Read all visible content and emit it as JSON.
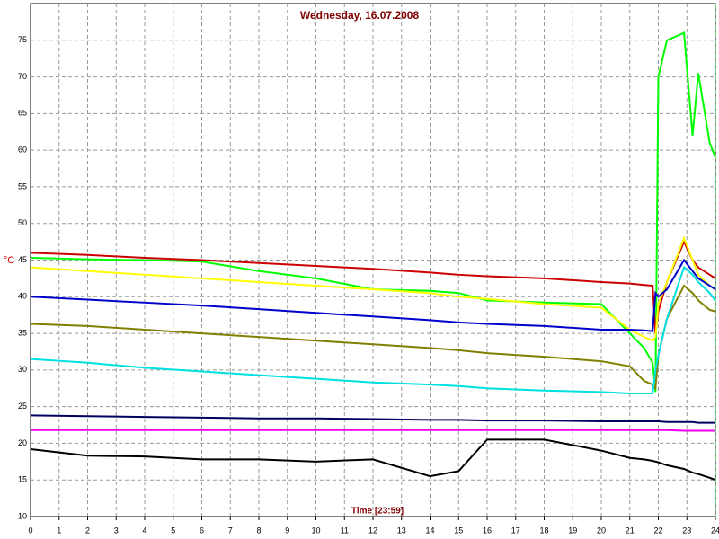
{
  "chart_data": {
    "type": "line",
    "title": "Wednesday, 16.07.2008",
    "y_label": "°C",
    "x_label": "Time [23:59]",
    "xlim": [
      0,
      24
    ],
    "xticks": [
      0,
      1,
      2,
      3,
      4,
      5,
      6,
      7,
      8,
      9,
      10,
      11,
      12,
      13,
      14,
      15,
      16,
      17,
      18,
      19,
      20,
      21,
      22,
      23,
      24
    ],
    "ylim": [
      10,
      80
    ],
    "yticks": [
      10,
      15,
      20,
      25,
      30,
      35,
      40,
      45,
      50,
      55,
      60,
      65,
      70,
      75
    ],
    "grid": true,
    "x": [
      0,
      2,
      4,
      6,
      8,
      10,
      12,
      14,
      15,
      16,
      18,
      20,
      21,
      21.5,
      21.8,
      21.9,
      22,
      22.3,
      22.9,
      23.2,
      23.4,
      23.8,
      24
    ],
    "series": [
      {
        "color": "#00ff00",
        "values": [
          45.3,
          45.1,
          45,
          44.8,
          43.5,
          42.5,
          41,
          40.8,
          40.5,
          39.5,
          39.2,
          39,
          35,
          33,
          31,
          27,
          70,
          75,
          76,
          62,
          70.5,
          61,
          59
        ]
      },
      {
        "color": "#cc0000",
        "values": [
          46,
          45.7,
          45.3,
          45,
          44.6,
          44.2,
          43.8,
          43.3,
          43,
          42.8,
          42.5,
          42,
          41.8,
          41.6,
          41.5,
          35,
          38,
          42,
          47.5,
          45,
          44,
          43,
          42.5
        ]
      },
      {
        "color": "#ffff00",
        "values": [
          44,
          43.5,
          43,
          42.5,
          42,
          41.5,
          41,
          40.5,
          40,
          39.7,
          39,
          38.5,
          35.5,
          34.5,
          34,
          34.5,
          39,
          42,
          48,
          45,
          43,
          41.5,
          41
        ]
      },
      {
        "color": "#0000cc",
        "values": [
          40,
          39.6,
          39.2,
          38.8,
          38.3,
          37.8,
          37.3,
          36.8,
          36.5,
          36.3,
          36,
          35.5,
          35.5,
          35.4,
          35.3,
          40.5,
          40,
          41,
          45,
          43.5,
          42.5,
          41.5,
          41
        ]
      },
      {
        "color": "#808000",
        "values": [
          36.3,
          36,
          35.5,
          35,
          34.5,
          34,
          33.5,
          33,
          32.7,
          32.3,
          31.8,
          31.2,
          30.5,
          28.5,
          28,
          27.5,
          32,
          37,
          41.5,
          40.5,
          39.5,
          38.2,
          38
        ]
      },
      {
        "color": "#00e0e0",
        "values": [
          31.5,
          31,
          30.3,
          29.8,
          29.3,
          28.8,
          28.3,
          28,
          27.8,
          27.5,
          27.2,
          27,
          26.8,
          26.8,
          26.8,
          30,
          32,
          37,
          44,
          43,
          42,
          40.5,
          39.5
        ]
      },
      {
        "color": "#000060",
        "values": [
          23.8,
          23.7,
          23.6,
          23.5,
          23.4,
          23.4,
          23.3,
          23.2,
          23.2,
          23.1,
          23.1,
          23,
          23,
          23,
          23,
          23,
          23,
          22.9,
          22.9,
          22.9,
          22.8,
          22.8,
          22.8
        ]
      },
      {
        "color": "#ee00ee",
        "values": [
          21.8,
          21.8,
          21.8,
          21.8,
          21.8,
          21.8,
          21.8,
          21.8,
          21.8,
          21.8,
          21.8,
          21.8,
          21.8,
          21.8,
          21.8,
          21.8,
          21.8,
          21.8,
          21.7,
          21.7,
          21.7,
          21.7,
          21.7
        ]
      },
      {
        "color": "#000000",
        "values": [
          19.2,
          18.3,
          18.2,
          17.8,
          17.8,
          17.5,
          17.8,
          15.5,
          16.2,
          20.5,
          20.5,
          19,
          18,
          17.8,
          17.6,
          17.5,
          17.4,
          17,
          16.5,
          16,
          15.8,
          15.3,
          15
        ]
      }
    ]
  }
}
